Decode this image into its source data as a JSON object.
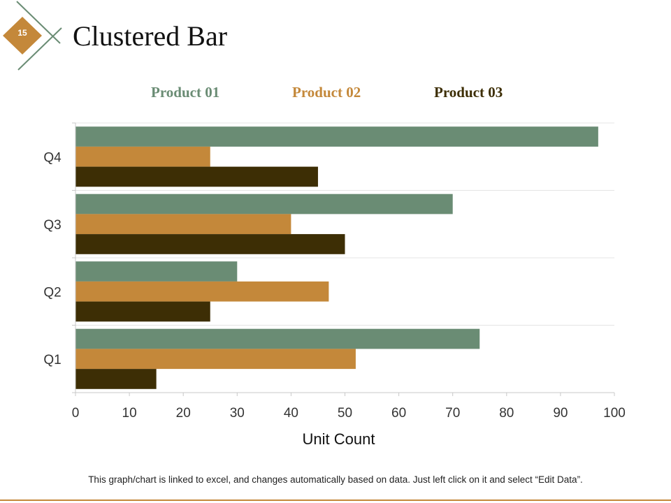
{
  "slide": {
    "number": "15",
    "title": "Clustered Bar",
    "footnote": "This graph/chart is linked to excel, and changes automatically  based on data. Just left click on it and select “Edit Data”."
  },
  "colors": {
    "accent": "#c4883a",
    "series": [
      "#6a8c74",
      "#c4883a",
      "#3d2e05"
    ]
  },
  "chart_data": {
    "type": "bar",
    "orientation": "horizontal",
    "title": "",
    "xlabel": "Unit Count",
    "ylabel": "",
    "categories": [
      "Q1",
      "Q2",
      "Q3",
      "Q4"
    ],
    "series": [
      {
        "name": "Product 01",
        "values": [
          75,
          30,
          70,
          97
        ]
      },
      {
        "name": "Product 02",
        "values": [
          52,
          47,
          40,
          25
        ]
      },
      {
        "name": "Product 03",
        "values": [
          15,
          25,
          50,
          45
        ]
      }
    ],
    "xlim": [
      0,
      100
    ],
    "xticks": [
      "0",
      "10",
      "20",
      "30",
      "40",
      "50",
      "60",
      "70",
      "80",
      "90",
      "100"
    ],
    "gridlines": "horizontal",
    "legend_position": "top"
  }
}
